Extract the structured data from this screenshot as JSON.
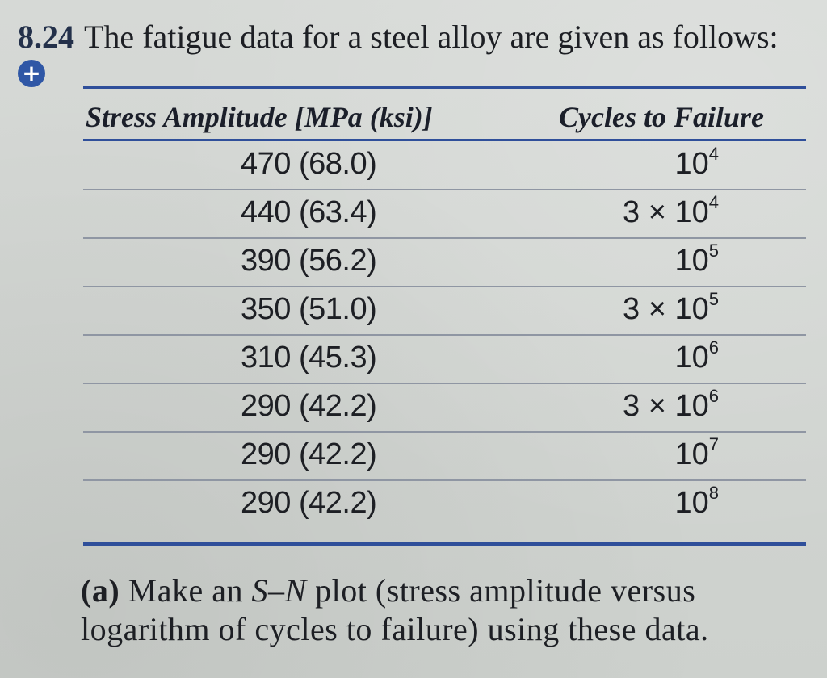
{
  "problem": {
    "number": "8.24",
    "statement": "The fatigue data for a steel alloy are given as follows:",
    "marker_icon": "plus-circle-icon",
    "accent_color": "#2f57a6"
  },
  "table": {
    "headers": {
      "stress": "Stress Amplitude [MPa (ksi)]",
      "cycles": "Cycles to Failure"
    },
    "rows": [
      {
        "stress": "470 (68.0)",
        "cycles_prefix": "",
        "cycles_base": "10",
        "cycles_exp": "4"
      },
      {
        "stress": "440 (63.4)",
        "cycles_prefix": "3 × ",
        "cycles_base": "10",
        "cycles_exp": "4"
      },
      {
        "stress": "390 (56.2)",
        "cycles_prefix": "",
        "cycles_base": "10",
        "cycles_exp": "5"
      },
      {
        "stress": "350 (51.0)",
        "cycles_prefix": "3 × ",
        "cycles_base": "10",
        "cycles_exp": "5"
      },
      {
        "stress": "310 (45.3)",
        "cycles_prefix": "",
        "cycles_base": "10",
        "cycles_exp": "6"
      },
      {
        "stress": "290 (42.2)",
        "cycles_prefix": "3 × ",
        "cycles_base": "10",
        "cycles_exp": "6"
      },
      {
        "stress": "290 (42.2)",
        "cycles_prefix": "",
        "cycles_base": "10",
        "cycles_exp": "7"
      },
      {
        "stress": "290 (42.2)",
        "cycles_prefix": "",
        "cycles_base": "10",
        "cycles_exp": "8"
      }
    ]
  },
  "question": {
    "label": "(a)",
    "text_1": " Make an ",
    "sn": "S–N",
    "text_2": " plot (stress amplitude versus logarithm of cycles to failure) using these data."
  }
}
